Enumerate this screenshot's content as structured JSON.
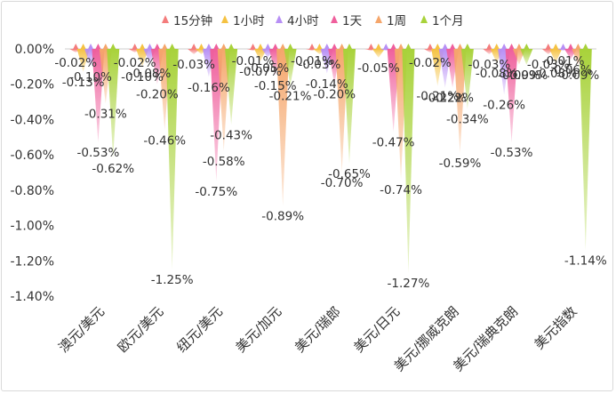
{
  "chart_data": {
    "type": "bar",
    "title": "",
    "xlabel": "",
    "ylabel": "",
    "ylim": [
      -1.4,
      0
    ],
    "yticks": [
      0,
      -0.2,
      -0.4,
      -0.6,
      -0.8,
      -1.0,
      -1.2,
      -1.4
    ],
    "ytick_labels": [
      "0.00%",
      "-0.20%",
      "-0.40%",
      "-0.60%",
      "-0.80%",
      "-1.00%",
      "-1.20%",
      "-1.40%"
    ],
    "legend_position": "top",
    "categories": [
      "澳元/美元",
      "欧元/美元",
      "纽元/美元",
      "美元/加元",
      "美元/瑞郎",
      "美元/日元",
      "美元/挪威克朗",
      "美元/瑞典克朗",
      "美元指数"
    ],
    "series": [
      {
        "name": "15分钟",
        "color": "#f47c7c",
        "values": [
          -0.02,
          -0.02,
          -0.03,
          -0.01,
          -0.01,
          -0.01,
          -0.02,
          -0.03,
          -0.03
        ],
        "labels": [
          "-0.02%",
          "-0.02%",
          "-0.03%",
          "-0.01%",
          "-0.01%",
          "",
          "-0.02%",
          "-0.03%",
          "-0.03%"
        ]
      },
      {
        "name": "1小时",
        "color": "#f5c242",
        "values": [
          -0.13,
          -0.1,
          -0.03,
          -0.07,
          -0.03,
          -0.05,
          -0.21,
          -0.08,
          -0.08
        ],
        "labels": [
          "-0.13%",
          "-0.10%",
          "",
          "-0.07%",
          "-0.03%",
          "-0.05%",
          "-0.21%",
          "-0.08%",
          "-0.08%"
        ]
      },
      {
        "name": "4小时",
        "color": "#b78ff5",
        "values": [
          -0.1,
          -0.08,
          -0.16,
          -0.05,
          -0.14,
          -0.01,
          -0.22,
          -0.26,
          -0.01
        ],
        "labels": [
          "-0.10%",
          "-0.08%",
          "-0.16%",
          "-0.05%",
          "-0.14%",
          "",
          "-0.22%",
          "-0.26%",
          "-0.01%"
        ]
      },
      {
        "name": "1天",
        "color": "#ef5f9c",
        "values": [
          -0.53,
          -0.2,
          -0.75,
          -0.15,
          -0.2,
          -0.47,
          -0.22,
          -0.53,
          -0.06
        ],
        "labels": [
          "-0.53%",
          "-0.20%",
          "-0.75%",
          "-0.15%",
          "-0.20%",
          "-0.47%",
          "-0.22%",
          "-0.53%",
          "-0.06%"
        ]
      },
      {
        "name": "1周",
        "color": "#f5a66b",
        "values": [
          -0.31,
          -0.46,
          -0.58,
          -0.89,
          -0.7,
          -0.74,
          -0.59,
          -0.09,
          -0.09
        ],
        "labels": [
          "-0.31%",
          "-0.46%",
          "-0.58%",
          "-0.89%",
          "-0.70%",
          "-0.74%",
          "-0.59%",
          "-0.09%",
          "-0.09%"
        ]
      },
      {
        "name": "1个月",
        "color": "#a8d23a",
        "values": [
          -0.62,
          -1.25,
          -0.43,
          -0.21,
          -0.65,
          -1.27,
          -0.34,
          -0.09,
          -1.14
        ],
        "labels": [
          "-0.62%",
          "-1.25%",
          "-0.43%",
          "-0.21%",
          "-0.65%",
          "-1.27%",
          "-0.34%",
          "-0.09%",
          "-1.14%"
        ]
      }
    ]
  }
}
